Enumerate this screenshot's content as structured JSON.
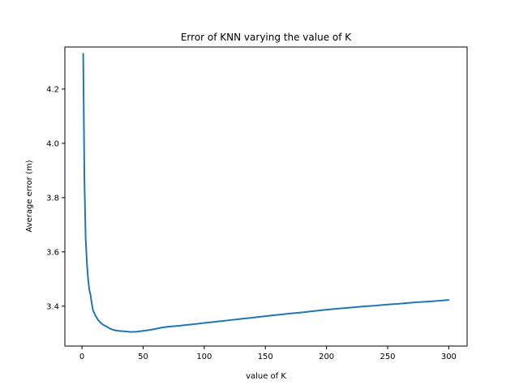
{
  "chart_data": {
    "type": "line",
    "title": "Error of KNN varying the value of K",
    "xlabel": "value of K",
    "ylabel": "Average error (m)",
    "xlim": [
      -14,
      315
    ],
    "ylim": [
      3.253,
      4.355
    ],
    "x_ticks": [
      0,
      50,
      100,
      150,
      200,
      250,
      300
    ],
    "y_ticks": [
      3.4,
      3.6,
      3.8,
      4.0,
      4.2
    ],
    "x_tick_labels": [
      "0",
      "50",
      "100",
      "150",
      "200",
      "250",
      "300"
    ],
    "y_tick_labels": [
      "3.4",
      "3.6",
      "3.8",
      "4.0",
      "4.2"
    ],
    "grid": false,
    "line_color": "#1f77b4",
    "series": [
      {
        "x": [
          1,
          2,
          3,
          4,
          5,
          6,
          7,
          8,
          9,
          10,
          11,
          12,
          13,
          15,
          17,
          20,
          23,
          26,
          30,
          35,
          40,
          45,
          50,
          55,
          60,
          65,
          70,
          80,
          90,
          100,
          110,
          120,
          130,
          140,
          150,
          160,
          170,
          180,
          190,
          200,
          210,
          220,
          230,
          240,
          250,
          260,
          270,
          280,
          290,
          300
        ],
        "y": [
          4.33,
          3.86,
          3.65,
          3.56,
          3.5,
          3.46,
          3.44,
          3.41,
          3.385,
          3.375,
          3.365,
          3.358,
          3.35,
          3.34,
          3.332,
          3.325,
          3.317,
          3.312,
          3.309,
          3.307,
          3.305,
          3.306,
          3.309,
          3.312,
          3.316,
          3.321,
          3.324,
          3.328,
          3.333,
          3.338,
          3.343,
          3.348,
          3.353,
          3.358,
          3.363,
          3.368,
          3.373,
          3.377,
          3.382,
          3.387,
          3.391,
          3.395,
          3.399,
          3.402,
          3.406,
          3.409,
          3.413,
          3.416,
          3.419,
          3.423
        ]
      }
    ]
  }
}
